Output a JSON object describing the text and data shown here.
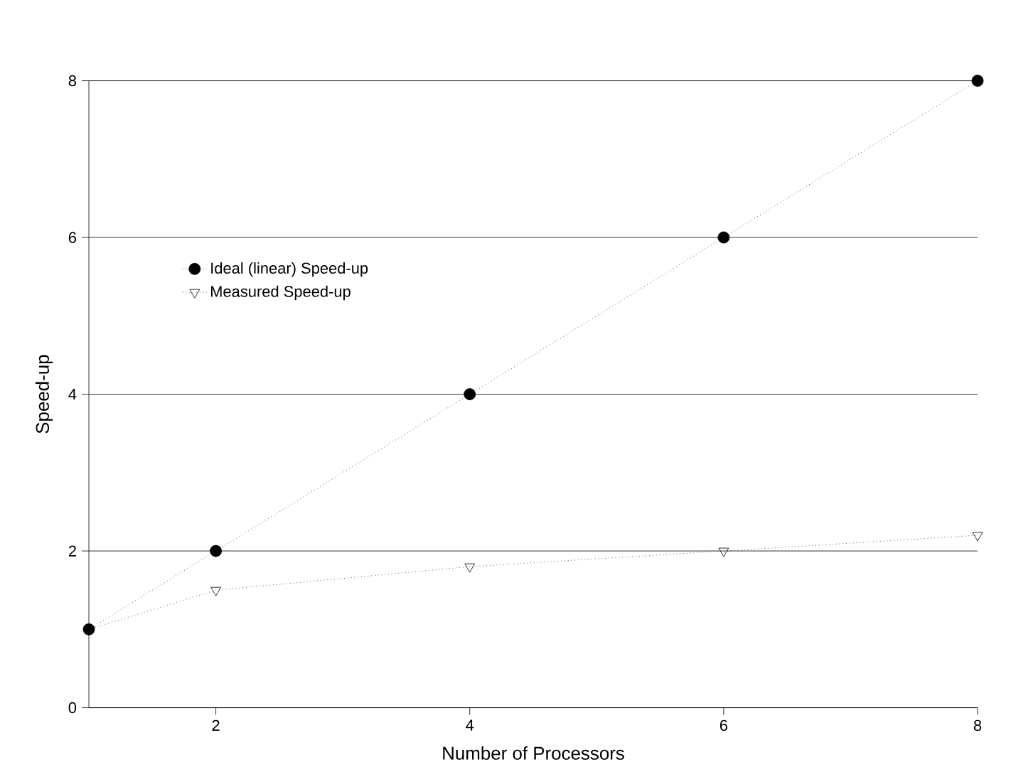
{
  "chart_data": {
    "type": "line",
    "xlabel": "Number of Processors",
    "ylabel": "Speed-up",
    "x": [
      1,
      2,
      4,
      6,
      8
    ],
    "series": [
      {
        "name": "Ideal (linear) Speed-up",
        "color": "#000000",
        "marker": "circle",
        "values": [
          1,
          2,
          4,
          6,
          8
        ]
      },
      {
        "name": "Measured Speed-up",
        "color": "#000000",
        "marker": "triangle",
        "values": [
          1,
          1.5,
          1.8,
          2.0,
          2.2
        ]
      }
    ],
    "xlim": [
      1,
      8
    ],
    "ylim": [
      0,
      8
    ],
    "xticks": [
      2,
      4,
      6,
      8
    ],
    "yticks": [
      0,
      2,
      4,
      6,
      8
    ],
    "grid": "y",
    "legend": "top left",
    "line_style": "dotted"
  }
}
